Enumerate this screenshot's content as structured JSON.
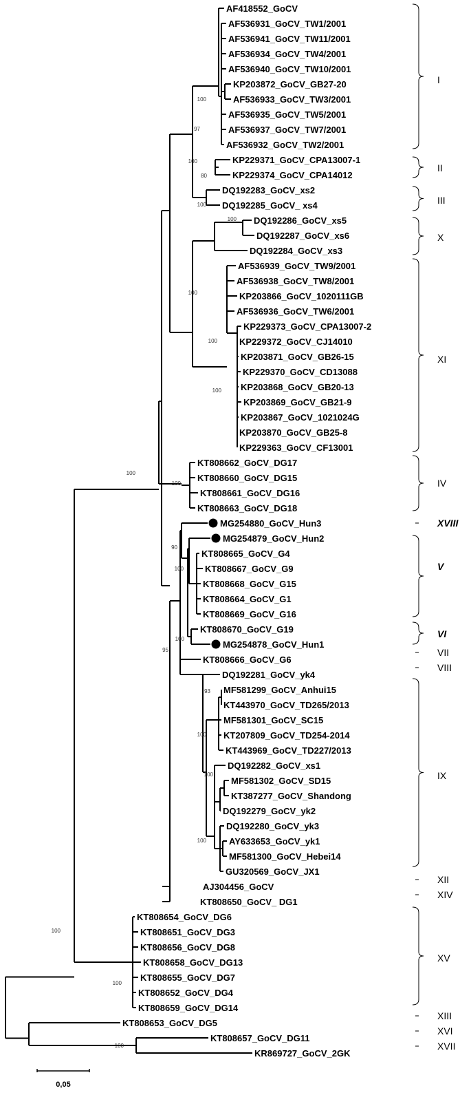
{
  "taxa": [
    {
      "id": "AF418552",
      "label": "AF418552_GoCV"
    },
    {
      "id": "AF536931",
      "label": "AF536931_GoCV_TW1/2001"
    },
    {
      "id": "AF536941",
      "label": "AF536941_GoCV_TW11/2001"
    },
    {
      "id": "AF536934",
      "label": "AF536934_GoCV_TW4/2001"
    },
    {
      "id": "AF536940",
      "label": "AF536940_GoCV_TW10/2001"
    },
    {
      "id": "KP203872",
      "label": "KP203872_GoCV_GB27-20"
    },
    {
      "id": "AF536933",
      "label": "AF536933_GoCV_TW3/2001"
    },
    {
      "id": "AF536935",
      "label": "AF536935_GoCV_TW5/2001"
    },
    {
      "id": "AF536937",
      "label": "AF536937_GoCV_TW7/2001"
    },
    {
      "id": "AF536932",
      "label": "AF536932_GoCV_TW2/2001"
    },
    {
      "id": "KP229371",
      "label": "KP229371_GoCV_CPA13007-1"
    },
    {
      "id": "KP229374",
      "label": "KP229374_GoCV_CPA14012"
    },
    {
      "id": "DQ192283",
      "label": "DQ192283_GoCV_xs2"
    },
    {
      "id": "DQ192285",
      "label": "DQ192285_GoCV_ xs4"
    },
    {
      "id": "DQ192286",
      "label": "DQ192286_GoCV_xs5"
    },
    {
      "id": "DQ192287",
      "label": "DQ192287_GoCV_xs6"
    },
    {
      "id": "DQ192284",
      "label": "DQ192284_GoCV_xs3"
    },
    {
      "id": "AF536939",
      "label": "AF536939_GoCV_TW9/2001"
    },
    {
      "id": "AF536938",
      "label": "AF536938_GoCV_TW8/2001"
    },
    {
      "id": "KP203866",
      "label": "KP203866_GoCV_1020111GB"
    },
    {
      "id": "AF536936",
      "label": "AF536936_GoCV_TW6/2001"
    },
    {
      "id": "KP229373",
      "label": "KP229373_GoCV_CPA13007-2"
    },
    {
      "id": "KP229372",
      "label": "KP229372_GoCV_CJ14010"
    },
    {
      "id": "KP203871",
      "label": "KP203871_GoCV_GB26-15"
    },
    {
      "id": "KP229370",
      "label": "KP229370_GoCV_CD13088"
    },
    {
      "id": "KP203868",
      "label": "KP203868_GoCV_GB20-13"
    },
    {
      "id": "KP203869",
      "label": "KP203869_GoCV_GB21-9"
    },
    {
      "id": "KP203867",
      "label": "KP203867_GoCV_1021024G"
    },
    {
      "id": "KP203870",
      "label": "KP203870_GoCV_GB25-8"
    },
    {
      "id": "KP229363",
      "label": "KP229363_GoCV_CF13001"
    },
    {
      "id": "KT808662",
      "label": "KT808662_GoCV_DG17"
    },
    {
      "id": "KT808660",
      "label": "KT808660_GoCV_DG15"
    },
    {
      "id": "KT808661",
      "label": "KT808661_GoCV_DG16"
    },
    {
      "id": "KT808663",
      "label": "KT808663_GoCV_DG18"
    },
    {
      "id": "MG254880",
      "label": "MG254880_GoCV_Hun3",
      "marker": "circle"
    },
    {
      "id": "MG254879",
      "label": "MG254879_GoCV_Hun2",
      "marker": "circle"
    },
    {
      "id": "KT808665",
      "label": "KT808665_GoCV_G4"
    },
    {
      "id": "KT808667",
      "label": "KT808667_GoCV_G9"
    },
    {
      "id": "KT808668",
      "label": "KT808668_GoCV_G15"
    },
    {
      "id": "KT808664",
      "label": "KT808664_GoCV_G1"
    },
    {
      "id": "KT808669",
      "label": "KT808669_GoCV_G16"
    },
    {
      "id": "KT808670",
      "label": "KT808670_GoCV_G19"
    },
    {
      "id": "MG254878",
      "label": "MG254878_GoCV_Hun1",
      "marker": "circle"
    },
    {
      "id": "KT808666",
      "label": "KT808666_GoCV_G6"
    },
    {
      "id": "DQ192281",
      "label": "DQ192281_GoCV_yk4"
    },
    {
      "id": "MF581299",
      "label": "MF581299_GoCV_Anhui15"
    },
    {
      "id": "KT443970",
      "label": "KT443970_GoCV_TD265/2013"
    },
    {
      "id": "MF581301",
      "label": "MF581301_GoCV_SC15"
    },
    {
      "id": "KT207809",
      "label": "KT207809_GoCV_TD254-2014"
    },
    {
      "id": "KT443969",
      "label": "KT443969_GoCV_TD227/2013"
    },
    {
      "id": "DQ192282",
      "label": "DQ192282_GoCV_xs1"
    },
    {
      "id": "MF581302",
      "label": "MF581302_GoCV_SD15"
    },
    {
      "id": "KT387277",
      "label": "KT387277_GoCV_Shandong"
    },
    {
      "id": "DQ192279",
      "label": "DQ192279_GoCV_yk2"
    },
    {
      "id": "DQ192280",
      "label": "DQ192280_GoCV_yk3"
    },
    {
      "id": "AY633653",
      "label": "AY633653_GoCV_yk1"
    },
    {
      "id": "MF581300",
      "label": "MF581300_GoCV_Hebei14"
    },
    {
      "id": "GU320569",
      "label": "GU320569_GoCV_JX1"
    },
    {
      "id": "AJ304456",
      "label": "AJ304456_GoCV"
    },
    {
      "id": "KT808650",
      "label": "KT808650_GoCV_ DG1"
    },
    {
      "id": "KT808654",
      "label": "KT808654_GoCV_DG6"
    },
    {
      "id": "KT808651",
      "label": "KT808651_GoCV_DG3"
    },
    {
      "id": "KT808656",
      "label": "KT808656_GoCV_DG8"
    },
    {
      "id": "KT808658",
      "label": "KT808658_GoCV_DG13"
    },
    {
      "id": "KT808655",
      "label": "KT808655_GoCV_DG7"
    },
    {
      "id": "KT808652",
      "label": "KT808652_GoCV_DG4"
    },
    {
      "id": "KT808659",
      "label": "KT808659_GoCV_DG14"
    },
    {
      "id": "KT808653",
      "label": "KT808653_GoCV_DG5"
    },
    {
      "id": "KT808657",
      "label": "KT808657_GoCV_DG11"
    },
    {
      "id": "KR869727",
      "label": "KR869727_GoCV_2GK"
    }
  ],
  "bootstrap": [
    "100",
    "97",
    "80",
    "100",
    "100",
    "100",
    "100",
    "100",
    "100",
    "100",
    "100",
    "90",
    "100",
    "100",
    "95",
    "93",
    "100",
    "100",
    "100",
    "100",
    "100",
    "100"
  ],
  "clades": [
    {
      "label": "I",
      "strong": false
    },
    {
      "label": "II",
      "strong": false
    },
    {
      "label": "III",
      "strong": false
    },
    {
      "label": "X",
      "strong": false
    },
    {
      "label": "XI",
      "strong": false
    },
    {
      "label": "IV",
      "strong": false
    },
    {
      "label": "XVIII",
      "strong": true
    },
    {
      "label": "V",
      "strong": true
    },
    {
      "label": "VI",
      "strong": true
    },
    {
      "label": "VII",
      "strong": false
    },
    {
      "label": "VIII",
      "strong": false
    },
    {
      "label": "IX",
      "strong": false
    },
    {
      "label": "XII",
      "strong": false
    },
    {
      "label": "XIV",
      "strong": false
    },
    {
      "label": "XV",
      "strong": false
    },
    {
      "label": "XIII",
      "strong": false
    },
    {
      "label": "XVI",
      "strong": false
    },
    {
      "label": "XVII",
      "strong": false
    }
  ],
  "scale_bar": {
    "label": "0,05",
    "value": 0.05
  }
}
